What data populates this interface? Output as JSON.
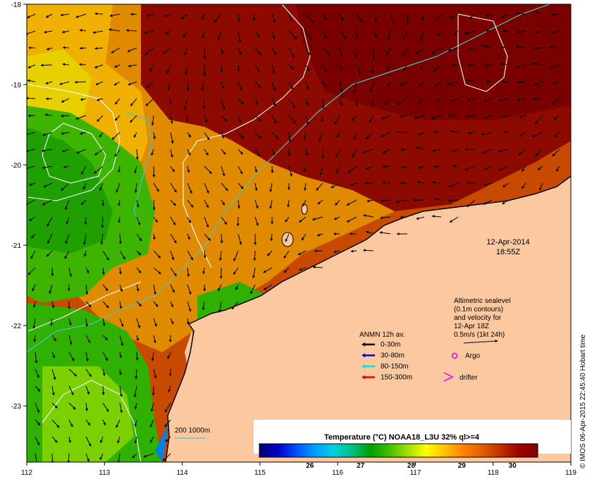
{
  "map": {
    "lon_ticks": [
      "112",
      "113",
      "114",
      "115",
      "116",
      "117",
      "118",
      "119"
    ],
    "lat_ticks": [
      "-18",
      "-19",
      "-20",
      "-21",
      "-22",
      "-23"
    ],
    "lon_range": [
      112,
      119
    ],
    "lat_range": [
      -23.7,
      -18
    ]
  },
  "timestamp": {
    "date": "12-Apr-2014",
    "time": "18:55Z"
  },
  "sealevel": {
    "line1": "Altimetric sealevel",
    "line2": "(0.1m contours)",
    "line3": "and velocity for",
    "line4": "12-Apr 18Z",
    "line5": "0.5m/s (1kt 24h)"
  },
  "anmn": {
    "title": "ANMN 12h av.",
    "items": [
      {
        "label": "0-30m",
        "color": "#000000"
      },
      {
        "label": "30-80m",
        "color": "#0000ee"
      },
      {
        "label": "80-150m",
        "color": "#00e5e5"
      },
      {
        "label": "150-300m",
        "color": "#ee0000"
      }
    ]
  },
  "argo": {
    "label": "Argo",
    "color": "#ee00ee"
  },
  "drifter": {
    "label": "drifter",
    "color": "#ee00ee"
  },
  "isobath": {
    "label": "200  1000m",
    "color": "#46c8c8"
  },
  "colorbar": {
    "title": "Temperature (°C) NOAA18_L3U 32% ql>=4",
    "ticks": [
      "26",
      "27",
      "28",
      "29",
      "30"
    ],
    "range": [
      25,
      30.5
    ],
    "colors": [
      "#00007a",
      "#0000c8",
      "#0050ff",
      "#00a0ff",
      "#00d0e0",
      "#00c080",
      "#00a000",
      "#40c000",
      "#a0e000",
      "#ffff00",
      "#ffc000",
      "#ff8000",
      "#e06000",
      "#c03000",
      "#a00000",
      "#800000"
    ]
  },
  "credit": "© IMOS 06-Apr-2015 22:45:40 Hobart time"
}
